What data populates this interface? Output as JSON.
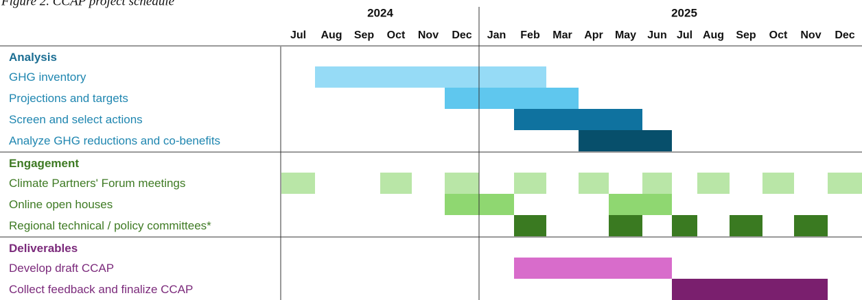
{
  "chart_data": {
    "type": "gantt",
    "title": "Figure 2. CCAP project schedule",
    "years": [
      "2024",
      "2025"
    ],
    "months": [
      "Jul",
      "Aug",
      "Sep",
      "Oct",
      "Nov",
      "Dec",
      "Jan",
      "Feb",
      "Mar",
      "Apr",
      "May",
      "Jun",
      "Jul",
      "Aug",
      "Sep",
      "Oct",
      "Nov",
      "Dec"
    ],
    "groups": [
      {
        "name": "Analysis",
        "color": "#1b6e93",
        "text_color": "#1f86b0",
        "tasks": [
          {
            "name": "GHG inventory",
            "color": "#96dbf6",
            "spans": [
              [
                1,
                7
              ]
            ]
          },
          {
            "name": "Projections and targets",
            "color": "#5fc7ee",
            "spans": [
              [
                5,
                8
              ]
            ]
          },
          {
            "name": "Screen and select actions",
            "color": "#0f729f",
            "spans": [
              [
                7,
                10
              ]
            ]
          },
          {
            "name": "Analyze GHG reductions and co-benefits",
            "color": "#074f6b",
            "spans": [
              [
                9,
                11
              ]
            ]
          }
        ]
      },
      {
        "name": "Engagement",
        "color": "#3e7a23",
        "text_color": "#3e7a23",
        "tasks": [
          {
            "name": "Climate Partners' Forum meetings",
            "color": "#b9e6a7",
            "spans": [
              [
                0,
                0
              ],
              [
                3,
                3
              ],
              [
                5,
                5
              ],
              [
                7,
                7
              ],
              [
                9,
                9
              ],
              [
                11,
                11
              ],
              [
                13,
                13
              ],
              [
                15,
                15
              ],
              [
                17,
                17
              ]
            ]
          },
          {
            "name": "Online open houses",
            "color": "#8fd771",
            "spans": [
              [
                5,
                6
              ],
              [
                10,
                11
              ]
            ]
          },
          {
            "name": "Regional technical / policy committees*",
            "color": "#3a7a21",
            "spans": [
              [
                7,
                7
              ],
              [
                10,
                10
              ],
              [
                12,
                12
              ],
              [
                14,
                14
              ],
              [
                16,
                16
              ]
            ]
          }
        ]
      },
      {
        "name": "Deliverables",
        "color": "#7b2a7b",
        "text_color": "#7b2a7b",
        "tasks": [
          {
            "name": "Develop draft CCAP",
            "color": "#d86ccb",
            "spans": [
              [
                7,
                11
              ]
            ]
          },
          {
            "name": "Collect feedback and finalize CCAP",
            "color": "#7a1f6e",
            "spans": [
              [
                12,
                16
              ]
            ]
          }
        ]
      }
    ]
  }
}
